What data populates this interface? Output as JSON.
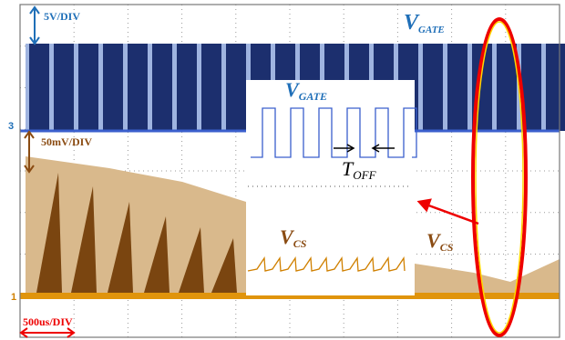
{
  "gate_panel": {
    "scale": "5V/DIV",
    "channel": "3",
    "label": {
      "main": "V",
      "sub": "GATE"
    }
  },
  "cs_panel": {
    "scale": "50mV/DIV",
    "channel": "1",
    "label": {
      "main": "V",
      "sub": "CS"
    }
  },
  "inset": {
    "gate_label": {
      "main": "V",
      "sub": "GATE"
    },
    "toff_label": {
      "main": "T",
      "sub": "OFF"
    },
    "cs_label": {
      "main": "V",
      "sub": "CS"
    }
  },
  "timebase": "500us/DIV"
}
